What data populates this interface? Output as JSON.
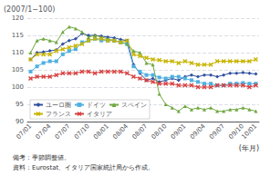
{
  "chart_data": {
    "type": "line",
    "ylabel": "(2007/1−100)",
    "xlabel": "(年月)",
    "annotations": [
      "備考：季節調整値。",
      "資料：Eurostat、イタリア国家統計局から作成。"
    ],
    "categories": [
      "07/01",
      null,
      null,
      "07/04",
      null,
      null,
      "07/07",
      null,
      null,
      "07/10",
      null,
      null,
      "08/01",
      null,
      null,
      "08/04",
      null,
      null,
      "08/07",
      null,
      null,
      "08/10",
      null,
      null,
      "09/01",
      null,
      null,
      "09/04",
      null,
      null,
      "09/07",
      null,
      null,
      "09/10",
      null,
      "10/01"
    ],
    "ylim": [
      90,
      120
    ],
    "yticks": [
      90,
      95,
      100,
      105,
      110,
      115,
      120
    ],
    "grid": true,
    "legend": "lower left",
    "series": [
      {
        "name": "ユーロ圈",
        "color": "#3050a0",
        "marker": "diamond",
        "values": [
          108.0,
          110.0,
          110.2,
          110.5,
          110.8,
          112.5,
          113.5,
          114.0,
          115.5,
          115.0,
          115.0,
          114.8,
          114.5,
          114.3,
          113.8,
          113.5,
          106.5,
          104.0,
          102.0,
          102.5,
          101.5,
          102.0,
          102.5,
          102.0,
          103.0,
          103.5,
          103.0,
          103.5,
          103.5,
          103.0,
          103.5,
          104.0,
          104.0,
          104.2,
          104.0,
          103.8
        ]
      },
      {
        "name": "ドイツ",
        "color": "#50b0e0",
        "marker": "square",
        "values": [
          104.5,
          106.0,
          107.0,
          107.5,
          107.5,
          109.5,
          110.5,
          111.0,
          113.0,
          113.5,
          114.0,
          113.5,
          113.5,
          113.5,
          113.0,
          112.5,
          106.0,
          104.5,
          103.5,
          103.5,
          102.8,
          102.5,
          103.0,
          103.0,
          102.5,
          102.0,
          101.5,
          101.0,
          101.0,
          100.5,
          100.5,
          101.0,
          101.0,
          101.2,
          101.0,
          101.0
        ]
      },
      {
        "name": "スペイン",
        "color": "#70a840",
        "marker": "triangle",
        "values": [
          110.0,
          113.5,
          114.0,
          113.5,
          113.0,
          116.0,
          117.5,
          117.0,
          116.0,
          114.5,
          115.0,
          114.5,
          114.0,
          113.5,
          113.0,
          112.5,
          110.5,
          110.0,
          107.0,
          106.5,
          98.0,
          95.0,
          94.0,
          93.0,
          94.5,
          93.5,
          94.0,
          93.5,
          94.0,
          93.0,
          93.0,
          93.5,
          93.5,
          94.0,
          93.5,
          93.0
        ]
      },
      {
        "name": "フランス",
        "color": "#c8b400",
        "marker": "x",
        "values": [
          108.0,
          109.5,
          109.5,
          109.5,
          110.5,
          111.0,
          111.5,
          112.0,
          112.5,
          113.5,
          114.0,
          114.0,
          113.5,
          113.5,
          113.0,
          113.5,
          109.5,
          109.0,
          108.5,
          108.0,
          107.8,
          107.5,
          107.5,
          107.0,
          107.5,
          107.0,
          106.5,
          106.5,
          106.5,
          107.5,
          107.5,
          107.5,
          107.5,
          107.5,
          107.5,
          108.0
        ]
      },
      {
        "name": "イタリア",
        "color": "#d84040",
        "marker": "x",
        "values": [
          102.5,
          103.0,
          103.0,
          103.0,
          103.5,
          104.0,
          104.0,
          104.0,
          104.5,
          104.5,
          104.0,
          104.5,
          104.5,
          104.5,
          104.5,
          104.0,
          103.0,
          102.5,
          102.0,
          101.5,
          101.0,
          101.0,
          101.0,
          100.5,
          100.5,
          100.5,
          100.0,
          100.0,
          100.0,
          100.5,
          100.5,
          100.5,
          100.5,
          100.5,
          100.0,
          100.5
        ]
      }
    ]
  }
}
